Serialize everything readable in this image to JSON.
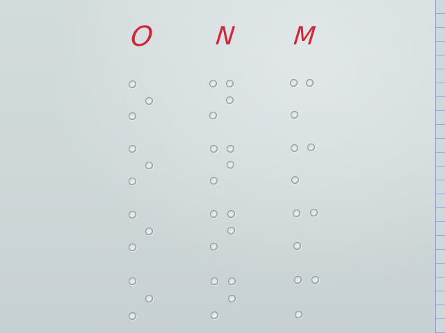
{
  "letters": {
    "o": "O",
    "n": "N",
    "m": "M"
  },
  "colors": {
    "ink": "#d0283a",
    "paper": "#cfd8d9"
  }
}
